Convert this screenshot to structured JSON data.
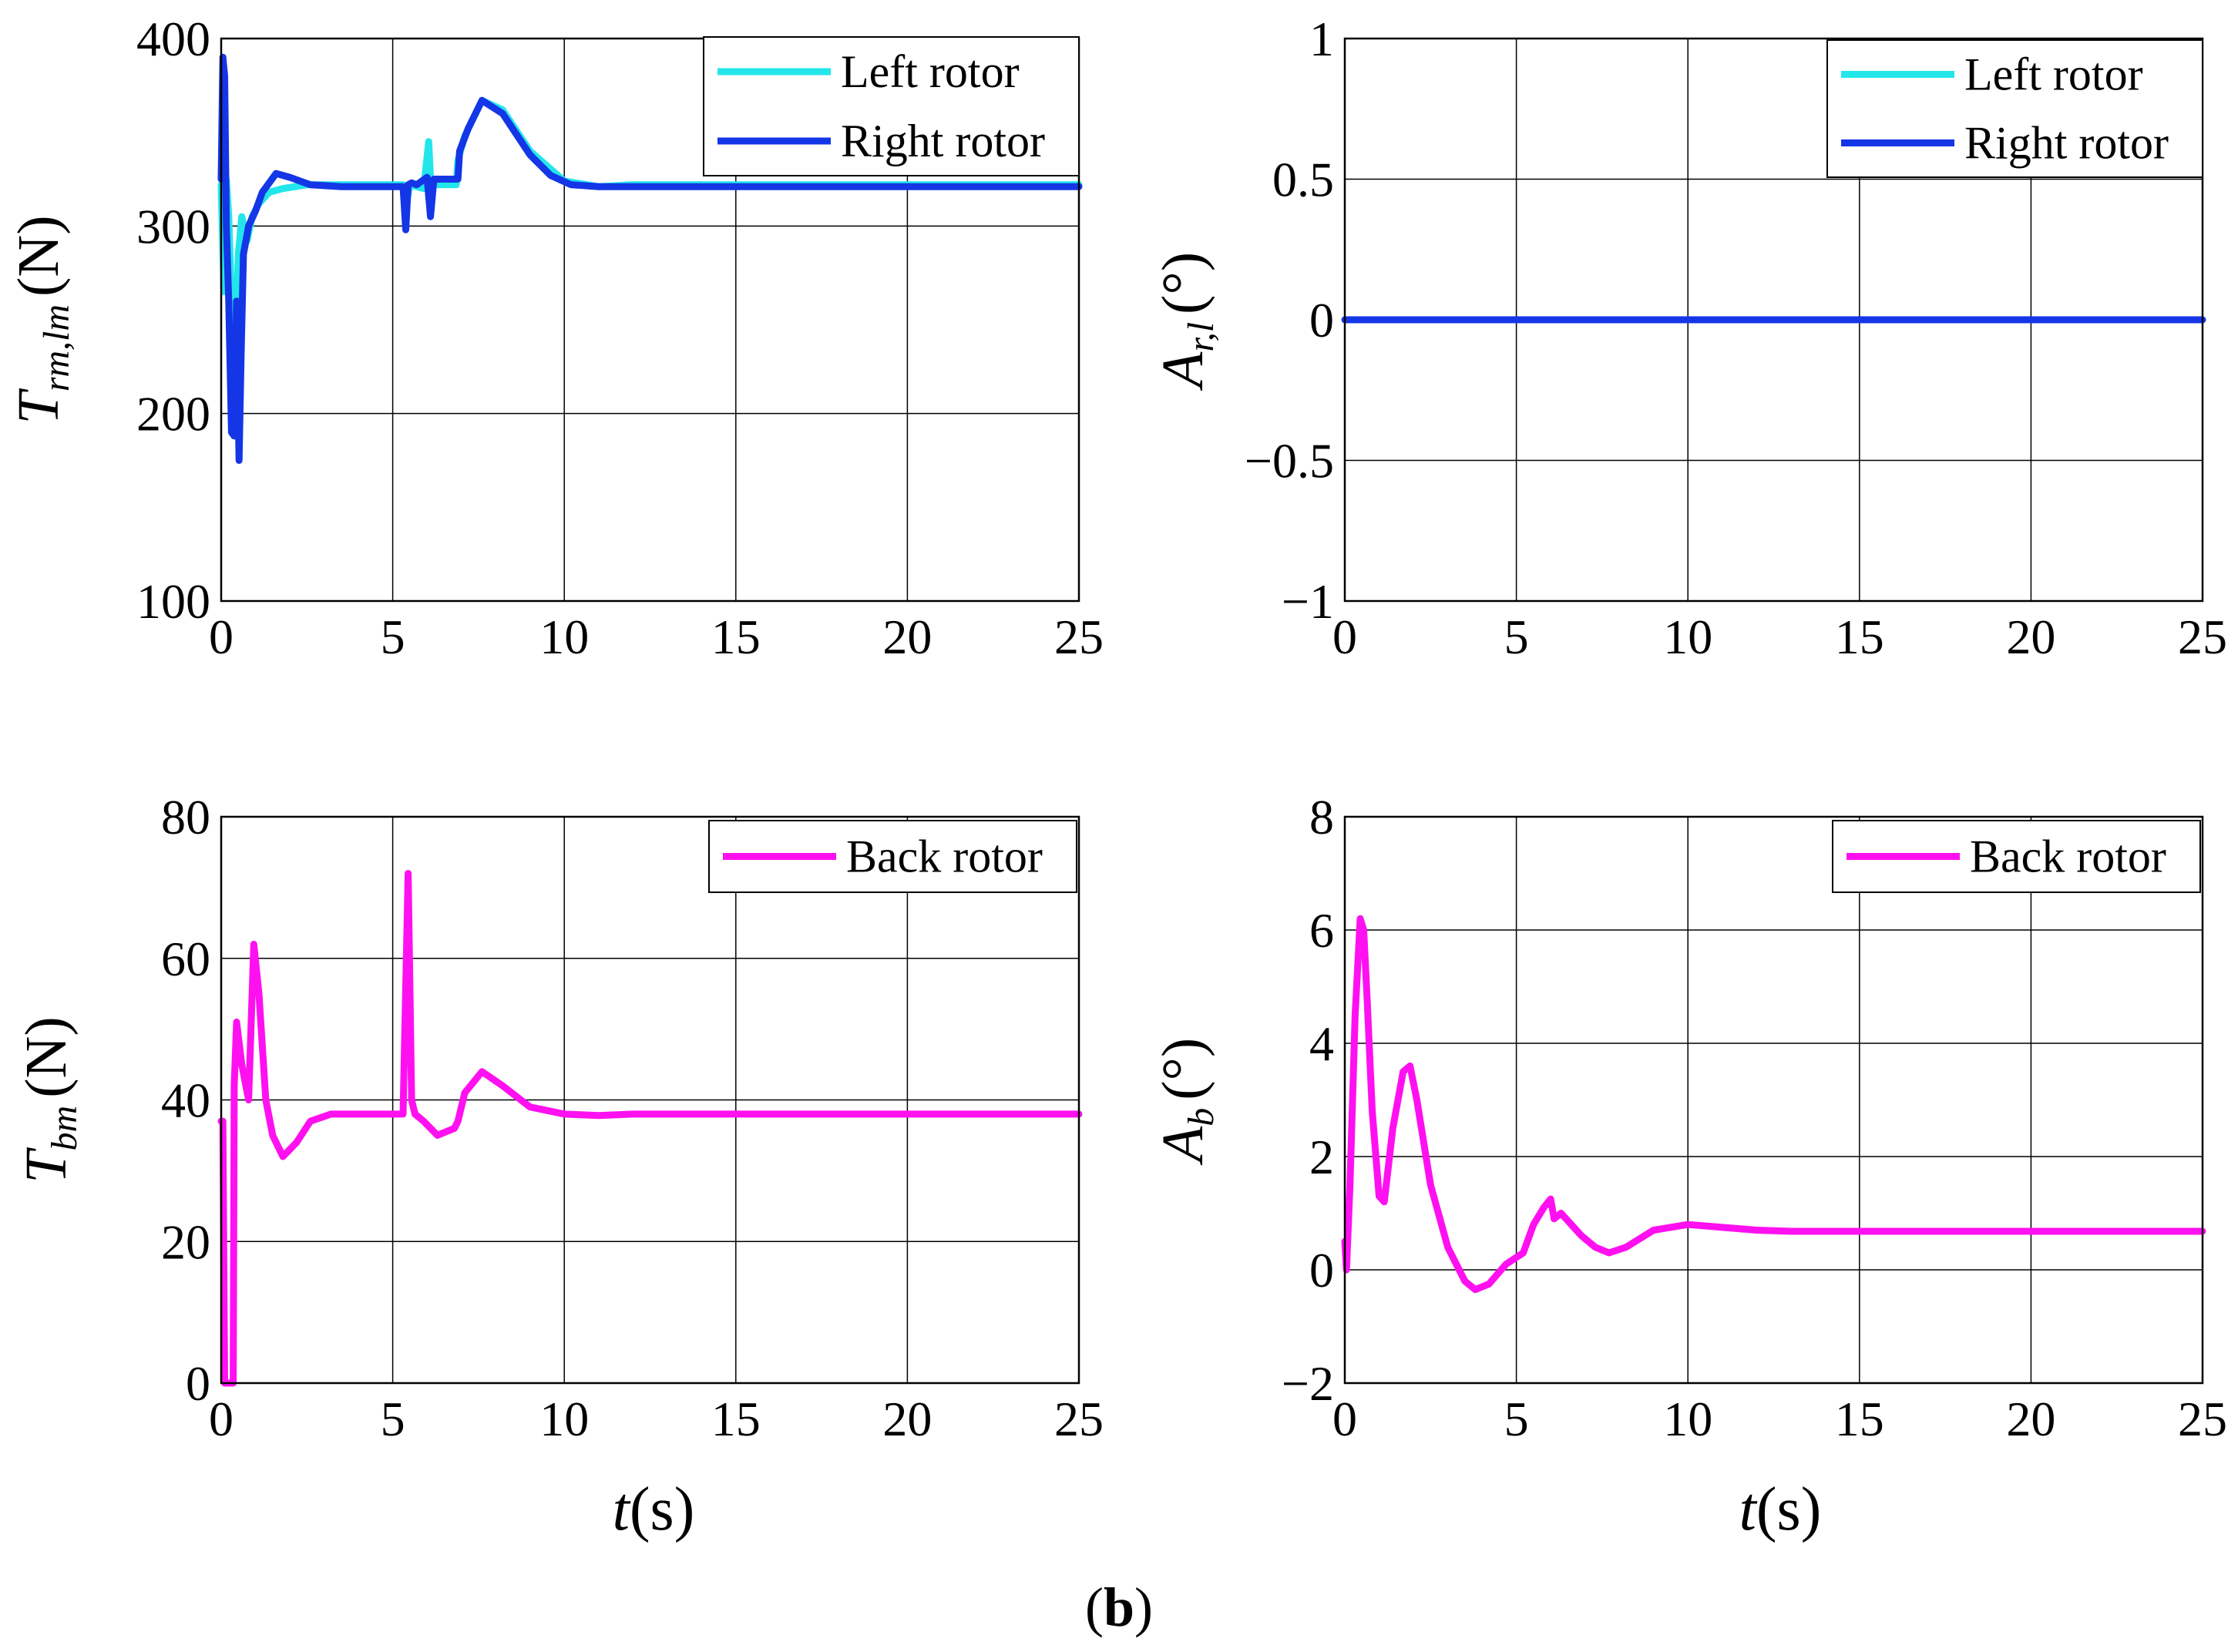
{
  "figure_caption": {
    "open": "(",
    "letter": "b",
    "close": ")"
  },
  "xlabel": {
    "var": "t",
    "open": "(",
    "unit": "s",
    "close": ")"
  },
  "colors": {
    "left_rotor": "#22e6ea",
    "right_rotor": "#1436e6",
    "back_rotor": "#ff10f0",
    "grid": "#000000"
  },
  "chart_data": [
    {
      "id": "Trm",
      "type": "line",
      "ylabel": {
        "sym": "T",
        "sub": "rm,lm",
        "unit": "(N)"
      },
      "xlim": [
        0,
        25
      ],
      "ylim": [
        100,
        400
      ],
      "xticks": [
        "0",
        "5",
        "10",
        "15",
        "20",
        "25"
      ],
      "yticks": [
        "100",
        "200",
        "300",
        "400"
      ],
      "grid": true,
      "legend_position": "top-right",
      "series": [
        {
          "name": "Left rotor",
          "color": "#22e6ea",
          "x": [
            0,
            0.08,
            0.15,
            0.22,
            0.3,
            0.4,
            0.5,
            0.6,
            0.75,
            0.9,
            1.1,
            1.4,
            1.8,
            2.5,
            3.5,
            5.3,
            5.4,
            5.5,
            5.9,
            6.05,
            6.1,
            6.15,
            6.5,
            6.85,
            6.9,
            7.1,
            7.6,
            8.2,
            9.0,
            10.0,
            11.0,
            12.0,
            14.0,
            25.0
          ],
          "y": [
            322,
            265,
            325,
            305,
            260,
            228,
            285,
            305,
            292,
            305,
            312,
            318,
            320,
            322,
            322,
            322,
            312,
            322,
            320,
            345,
            325,
            322,
            322,
            322,
            335,
            348,
            367,
            362,
            340,
            324,
            321,
            322,
            322,
            322
          ]
        },
        {
          "name": "Right rotor",
          "color": "#1436e6",
          "x": [
            0,
            0.05,
            0.1,
            0.15,
            0.22,
            0.3,
            0.38,
            0.45,
            0.52,
            0.58,
            0.65,
            0.8,
            1.0,
            1.2,
            1.6,
            2.0,
            2.6,
            3.5,
            5.3,
            5.38,
            5.45,
            5.55,
            5.7,
            6.0,
            6.1,
            6.2,
            6.6,
            6.9,
            6.95,
            7.2,
            7.6,
            8.2,
            9.0,
            9.6,
            10.2,
            11.0,
            12.0,
            14.0,
            25.0
          ],
          "y": [
            325,
            390,
            380,
            300,
            260,
            190,
            188,
            260,
            175,
            230,
            285,
            300,
            308,
            318,
            328,
            326,
            322,
            321,
            321,
            298,
            322,
            323,
            322,
            326,
            305,
            325,
            325,
            325,
            340,
            352,
            367,
            360,
            338,
            327,
            322,
            321,
            321,
            321,
            321
          ]
        }
      ]
    },
    {
      "id": "Arl",
      "type": "line",
      "ylabel": {
        "sym": "A",
        "sub": "r,l",
        "unit": "(°)"
      },
      "xlim": [
        0,
        25
      ],
      "ylim": [
        -1,
        1
      ],
      "xticks": [
        "0",
        "5",
        "10",
        "15",
        "20",
        "25"
      ],
      "yticks": [
        "−1",
        "−0.5",
        "0",
        "0.5",
        "1"
      ],
      "ytick_values": [
        -1,
        -0.5,
        0,
        0.5,
        1
      ],
      "grid": true,
      "legend_position": "top-right",
      "series": [
        {
          "name": "Left rotor",
          "color": "#22e6ea",
          "x": [
            0,
            25
          ],
          "y": [
            0,
            0
          ]
        },
        {
          "name": "Right rotor",
          "color": "#1436e6",
          "x": [
            0,
            25
          ],
          "y": [
            0,
            0
          ]
        }
      ]
    },
    {
      "id": "Tbm",
      "type": "line",
      "ylabel": {
        "sym": "T",
        "sub": "bm",
        "unit": "(N)"
      },
      "xlim": [
        0,
        25
      ],
      "ylim": [
        0,
        80
      ],
      "xticks": [
        "0",
        "5",
        "10",
        "15",
        "20",
        "25"
      ],
      "yticks": [
        "0",
        "20",
        "40",
        "60",
        "80"
      ],
      "grid": true,
      "legend_position": "top-right",
      "series": [
        {
          "name": "Back rotor",
          "color": "#ff10f0",
          "x": [
            0,
            0.05,
            0.1,
            0.12,
            0.35,
            0.38,
            0.45,
            0.6,
            0.8,
            0.95,
            1.1,
            1.3,
            1.5,
            1.8,
            2.2,
            2.6,
            3.2,
            4.0,
            5.0,
            5.3,
            5.45,
            5.55,
            5.65,
            5.9,
            6.3,
            6.8,
            6.9,
            7.1,
            7.6,
            8.2,
            9.0,
            10.0,
            11.0,
            12.0,
            25.0
          ],
          "y": [
            37,
            37,
            0,
            0,
            0,
            42,
            51,
            45,
            40,
            62,
            55,
            40,
            35,
            32,
            34,
            37,
            38,
            38,
            38,
            38,
            72,
            40,
            38,
            37,
            35,
            36,
            37,
            41,
            44,
            42,
            39,
            38,
            37.8,
            38,
            38
          ]
        }
      ]
    },
    {
      "id": "Ab",
      "type": "line",
      "ylabel": {
        "sym": "A",
        "sub": "b",
        "unit": "(°)"
      },
      "xlim": [
        0,
        25
      ],
      "ylim": [
        -2,
        8
      ],
      "xticks": [
        "0",
        "5",
        "10",
        "15",
        "20",
        "25"
      ],
      "yticks": [
        "−2",
        "0",
        "2",
        "4",
        "6",
        "8"
      ],
      "ytick_values": [
        -2,
        0,
        2,
        4,
        6,
        8
      ],
      "grid": true,
      "legend_position": "top-right",
      "series": [
        {
          "name": "Back rotor",
          "color": "#ff10f0",
          "x": [
            0,
            0.05,
            0.15,
            0.3,
            0.45,
            0.55,
            0.65,
            0.8,
            1.0,
            1.15,
            1.4,
            1.7,
            1.9,
            2.1,
            2.5,
            3.0,
            3.5,
            3.8,
            4.2,
            4.7,
            5.2,
            5.5,
            5.8,
            6.0,
            6.1,
            6.3,
            6.6,
            6.9,
            7.3,
            7.7,
            8.2,
            9.0,
            10.0,
            11.0,
            12.0,
            13.0,
            14.0,
            25.0
          ],
          "y": [
            0.5,
            0,
            1.5,
            4.5,
            6.2,
            6.0,
            4.8,
            2.8,
            1.3,
            1.2,
            2.5,
            3.5,
            3.6,
            3.0,
            1.5,
            0.4,
            -0.2,
            -0.35,
            -0.25,
            0.1,
            0.3,
            0.8,
            1.1,
            1.25,
            0.9,
            1.0,
            0.8,
            0.6,
            0.4,
            0.3,
            0.4,
            0.7,
            0.8,
            0.75,
            0.7,
            0.68,
            0.68,
            0.68
          ]
        }
      ]
    }
  ]
}
